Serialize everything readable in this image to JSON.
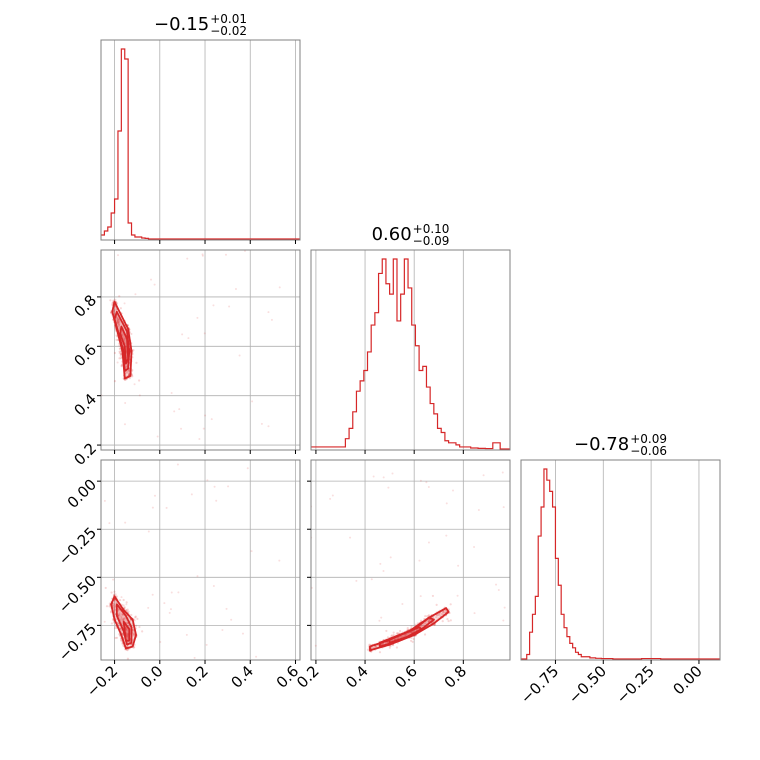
{
  "chart_data": {
    "type": "corner",
    "line_color": "#d62728",
    "grid": true,
    "parameters": [
      {
        "value": "−0.15",
        "upper": "+0.01",
        "lower": "−0.02"
      },
      {
        "value": "0.60",
        "upper": "+0.10",
        "lower": "−0.09"
      },
      {
        "value": "−0.78",
        "upper": "+0.09",
        "lower": "−0.06"
      }
    ],
    "axes": {
      "p0": {
        "range": [
          -0.26,
          0.62
        ],
        "ticks": [
          -0.2,
          0.0,
          0.2,
          0.4,
          0.6
        ],
        "tick_labels": [
          "−0.2",
          "0.0",
          "0.2",
          "0.4",
          "0.6"
        ]
      },
      "p1": {
        "range": [
          0.18,
          0.99
        ],
        "ticks": [
          0.2,
          0.4,
          0.6,
          0.8
        ],
        "tick_labels": [
          "0.2",
          "0.4",
          "0.6",
          "0.8"
        ]
      },
      "p2": {
        "range": [
          -0.93,
          0.11
        ],
        "ticks": [
          -0.75,
          -0.5,
          -0.25,
          0.0
        ],
        "tick_labels": [
          "−0.75",
          "−0.50",
          "−0.25",
          "0.00"
        ]
      }
    },
    "histograms": [
      {
        "param": "p0",
        "bin_edges": [
          -0.26,
          -0.245,
          -0.23,
          -0.215,
          -0.2,
          -0.185,
          -0.17,
          -0.155,
          -0.14,
          -0.125,
          -0.11,
          -0.095,
          -0.08,
          -0.065,
          -0.05,
          0.62
        ],
        "counts": [
          2,
          4,
          6,
          13,
          20,
          54,
          95,
          90,
          8,
          2,
          1,
          1,
          0.5,
          0.3,
          0
        ]
      },
      {
        "param": "p1",
        "bin_edges": [
          0.18,
          0.23,
          0.29,
          0.32,
          0.335,
          0.35,
          0.365,
          0.38,
          0.395,
          0.41,
          0.425,
          0.44,
          0.455,
          0.47,
          0.485,
          0.5,
          0.515,
          0.53,
          0.545,
          0.56,
          0.575,
          0.59,
          0.605,
          0.62,
          0.635,
          0.65,
          0.665,
          0.68,
          0.695,
          0.71,
          0.725,
          0.74,
          0.755,
          0.77,
          0.785,
          0.8,
          0.83,
          0.86,
          0.89,
          0.92,
          0.95,
          0.99
        ],
        "counts": [
          1,
          1,
          1,
          5,
          10,
          18,
          28,
          33,
          38,
          47,
          60,
          66,
          85,
          92,
          80,
          75,
          92,
          62,
          75,
          92,
          78,
          60,
          50,
          38,
          40,
          30,
          22,
          17,
          10,
          8,
          4,
          3,
          3,
          2,
          1,
          1,
          0.5,
          0.3,
          0.2,
          3,
          0
        ]
      },
      {
        "param": "p2",
        "bin_edges": [
          -0.93,
          -0.9,
          -0.885,
          -0.87,
          -0.855,
          -0.84,
          -0.825,
          -0.81,
          -0.795,
          -0.78,
          -0.765,
          -0.75,
          -0.735,
          -0.72,
          -0.705,
          -0.69,
          -0.675,
          -0.66,
          -0.645,
          -0.63,
          -0.615,
          -0.6,
          -0.57,
          -0.54,
          -0.51,
          -0.45,
          -0.3,
          -0.2,
          -0.1,
          0.11
        ],
        "counts": [
          0,
          2,
          12,
          20,
          28,
          55,
          68,
          85,
          80,
          75,
          68,
          45,
          33,
          20,
          14,
          10,
          7,
          5,
          3,
          2,
          1,
          1,
          0.5,
          0.3,
          0.2,
          0,
          0.2,
          0,
          0
        ]
      }
    ],
    "scatter_panels": [
      {
        "x": "p0",
        "y": "p1",
        "contours": [
          {
            "level": 1,
            "points": [
              [
                -0.2,
                0.78
              ],
              [
                -0.14,
                0.67
              ],
              [
                -0.125,
                0.58
              ],
              [
                -0.13,
                0.48
              ],
              [
                -0.155,
                0.47
              ],
              [
                -0.165,
                0.58
              ],
              [
                -0.21,
                0.74
              ]
            ]
          },
          {
            "level": 2,
            "points": [
              [
                -0.19,
                0.74
              ],
              [
                -0.145,
                0.66
              ],
              [
                -0.135,
                0.58
              ],
              [
                -0.14,
                0.51
              ],
              [
                -0.155,
                0.5
              ],
              [
                -0.16,
                0.58
              ],
              [
                -0.2,
                0.71
              ]
            ]
          },
          {
            "level": 3,
            "points": [
              [
                -0.17,
                0.68
              ],
              [
                -0.145,
                0.63
              ],
              [
                -0.14,
                0.55
              ],
              [
                -0.15,
                0.53
              ],
              [
                -0.155,
                0.6
              ],
              [
                -0.175,
                0.65
              ]
            ]
          }
        ]
      },
      {
        "x": "p0",
        "y": "p2",
        "contours": [
          {
            "level": 1,
            "points": [
              [
                -0.2,
                -0.6
              ],
              [
                -0.16,
                -0.67
              ],
              [
                -0.12,
                -0.72
              ],
              [
                -0.105,
                -0.8
              ],
              [
                -0.12,
                -0.86
              ],
              [
                -0.15,
                -0.87
              ],
              [
                -0.17,
                -0.8
              ],
              [
                -0.2,
                -0.72
              ],
              [
                -0.215,
                -0.64
              ]
            ]
          },
          {
            "level": 2,
            "points": [
              [
                -0.19,
                -0.64
              ],
              [
                -0.15,
                -0.7
              ],
              [
                -0.125,
                -0.76
              ],
              [
                -0.125,
                -0.84
              ],
              [
                -0.145,
                -0.85
              ],
              [
                -0.16,
                -0.78
              ],
              [
                -0.19,
                -0.7
              ]
            ]
          },
          {
            "level": 3,
            "points": [
              [
                -0.16,
                -0.73
              ],
              [
                -0.135,
                -0.77
              ],
              [
                -0.135,
                -0.83
              ],
              [
                -0.15,
                -0.83
              ],
              [
                -0.155,
                -0.78
              ]
            ]
          }
        ]
      },
      {
        "x": "p1",
        "y": "p2",
        "contours": [
          {
            "level": 1,
            "points": [
              [
                0.42,
                -0.88
              ],
              [
                0.5,
                -0.85
              ],
              [
                0.6,
                -0.8
              ],
              [
                0.68,
                -0.74
              ],
              [
                0.74,
                -0.68
              ],
              [
                0.73,
                -0.66
              ],
              [
                0.66,
                -0.71
              ],
              [
                0.58,
                -0.78
              ],
              [
                0.49,
                -0.83
              ],
              [
                0.42,
                -0.86
              ]
            ]
          },
          {
            "level": 2,
            "points": [
              [
                0.46,
                -0.86
              ],
              [
                0.54,
                -0.83
              ],
              [
                0.62,
                -0.78
              ],
              [
                0.68,
                -0.72
              ],
              [
                0.66,
                -0.71
              ],
              [
                0.6,
                -0.77
              ],
              [
                0.52,
                -0.81
              ],
              [
                0.46,
                -0.84
              ]
            ]
          },
          {
            "level": 3,
            "points": [
              [
                0.5,
                -0.84
              ],
              [
                0.57,
                -0.81
              ],
              [
                0.63,
                -0.77
              ],
              [
                0.62,
                -0.76
              ],
              [
                0.56,
                -0.79
              ],
              [
                0.5,
                -0.82
              ]
            ]
          }
        ]
      }
    ]
  }
}
